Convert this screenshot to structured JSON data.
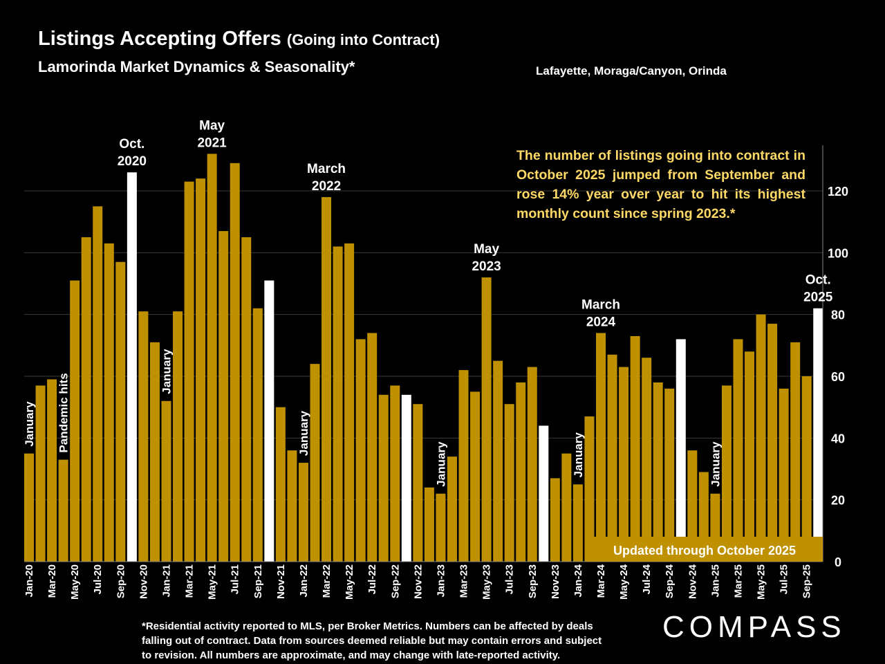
{
  "header": {
    "title": "Listings Accepting Offers",
    "title_paren": "(Going into Contract)",
    "subtitle": "Lamorinda Market Dynamics & Seasonality*",
    "region": "Lafayette, Moraga/Canyon, Orinda"
  },
  "callout": "The number of listings going into contract in October 2025 jumped from September and rose 14% year over year to hit its highest monthly count since spring 2023.*",
  "footnote": [
    "*Residential activity reported to MLS, per Broker Metrics. Numbers can be affected by deals",
    "falling out of contract. Data from sources deemed reliable but may contain errors and subject",
    "to revision. All numbers are approximate, and may change with late-reported activity."
  ],
  "logo": "COMPASS",
  "chart_data": {
    "type": "bar",
    "title": "Listings Accepting Offers (Going into Contract)",
    "categories": [
      "Jan-20",
      "Feb-20",
      "Mar-20",
      "Apr-20",
      "May-20",
      "Jun-20",
      "Jul-20",
      "Aug-20",
      "Sep-20",
      "Oct-20",
      "Nov-20",
      "Dec-20",
      "Jan-21",
      "Feb-21",
      "Mar-21",
      "Apr-21",
      "May-21",
      "Jun-21",
      "Jul-21",
      "Aug-21",
      "Sep-21",
      "Oct-21",
      "Nov-21",
      "Dec-21",
      "Jan-22",
      "Feb-22",
      "Mar-22",
      "Apr-22",
      "May-22",
      "Jun-22",
      "Jul-22",
      "Aug-22",
      "Sep-22",
      "Oct-22",
      "Nov-22",
      "Dec-22",
      "Jan-23",
      "Feb-23",
      "Mar-23",
      "Apr-23",
      "May-23",
      "Jun-23",
      "Jul-23",
      "Aug-23",
      "Sep-23",
      "Oct-23",
      "Nov-23",
      "Dec-23",
      "Jan-24",
      "Feb-24",
      "Mar-24",
      "Apr-24",
      "May-24",
      "Jun-24",
      "Jul-24",
      "Aug-24",
      "Sep-24",
      "Oct-24",
      "Nov-24",
      "Dec-24",
      "Jan-25",
      "Feb-25",
      "Mar-25",
      "Apr-25",
      "May-25",
      "Jun-25",
      "Jul-25",
      "Aug-25",
      "Sep-25",
      "Oct-25"
    ],
    "values": [
      35,
      57,
      59,
      33,
      91,
      105,
      115,
      103,
      97,
      126,
      81,
      71,
      52,
      81,
      123,
      124,
      132,
      107,
      129,
      105,
      82,
      91,
      50,
      36,
      32,
      64,
      118,
      102,
      103,
      72,
      74,
      54,
      57,
      54,
      51,
      24,
      22,
      34,
      62,
      55,
      92,
      65,
      51,
      58,
      63,
      44,
      27,
      35,
      25,
      47,
      74,
      67,
      63,
      73,
      66,
      58,
      56,
      72,
      36,
      29,
      22,
      57,
      72,
      68,
      80,
      77,
      56,
      71,
      60,
      82
    ],
    "highlight_months": [
      "Oct-20",
      "Oct-21",
      "Oct-22",
      "Oct-23",
      "Oct-24",
      "Oct-25"
    ],
    "colors": {
      "bar": "#BF9000",
      "highlight": "#FFFFFF",
      "grid": "#3A3A3A",
      "legend_box": "#BF9000"
    },
    "ylim": [
      0,
      135
    ],
    "yticks": [
      0,
      20,
      40,
      60,
      80,
      100,
      120
    ],
    "ytick_labels": [
      "0",
      "20",
      "40",
      "60",
      "80",
      "100",
      "120"
    ],
    "y_axis_side": "right",
    "grid": true,
    "xlabel": "",
    "ylabel": "",
    "legend_box_label": "Updated through October 2025",
    "top_annotations": [
      {
        "month": "Oct-20",
        "lines": [
          "Oct.",
          "2020"
        ]
      },
      {
        "month": "May-21",
        "lines": [
          "May",
          "2021"
        ]
      },
      {
        "month": "Mar-22",
        "lines": [
          "March",
          "2022"
        ]
      },
      {
        "month": "May-23",
        "lines": [
          "May",
          "2023"
        ]
      },
      {
        "month": "Mar-24",
        "lines": [
          "March",
          "2024"
        ]
      },
      {
        "month": "Oct-25",
        "lines": [
          "Oct.",
          "2025"
        ]
      }
    ],
    "rotated_annotations": [
      {
        "month": "Jan-20",
        "text": "January"
      },
      {
        "month": "Apr-20",
        "text": "Pandemic  hits"
      },
      {
        "month": "Jan-21",
        "text": "January"
      },
      {
        "month": "Jan-22",
        "text": "January"
      },
      {
        "month": "Jan-23",
        "text": "January"
      },
      {
        "month": "Jan-24",
        "text": "January"
      },
      {
        "month": "Jan-25",
        "text": "January"
      }
    ]
  }
}
